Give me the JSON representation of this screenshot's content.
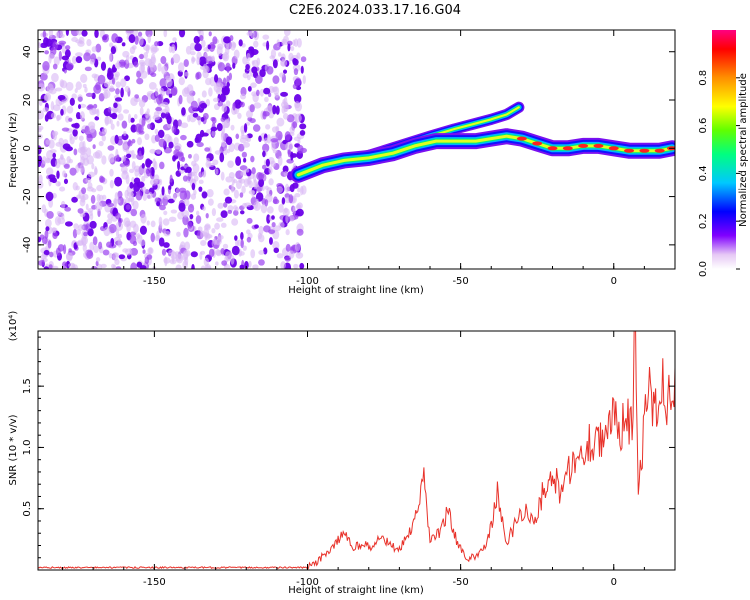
{
  "title": "C2E6.2024.033.17.16.G04",
  "chart_data": [
    {
      "type": "heatmap",
      "xlabel": "Height of straight line (km)",
      "ylabel": "Frequency (Hz)",
      "xlim": [
        -188,
        20
      ],
      "ylim": [
        -50,
        49
      ],
      "x_ticks": [
        -150,
        -100,
        -50,
        0
      ],
      "y_ticks": [
        -40,
        -20,
        0,
        20,
        40
      ],
      "colorbar": {
        "label": "Normalized spectral amplitude",
        "range": [
          0,
          1
        ],
        "ticks": [
          "0.0",
          "0.2",
          "0.4",
          "0.6",
          "0.8"
        ]
      },
      "noise_region_x": [
        -188,
        -101
      ],
      "ridge": {
        "x": [
          -103,
          -95,
          -88,
          -80,
          -72,
          -65,
          -58,
          -50,
          -45,
          -40,
          -35,
          -30,
          -25,
          -20,
          -15,
          -10,
          -5,
          0,
          5,
          10,
          15,
          19
        ],
        "y": [
          -11,
          -7,
          -5,
          -4,
          -2,
          1,
          3,
          3,
          3,
          4,
          5,
          4,
          2,
          0,
          0,
          1,
          1,
          0,
          -1,
          -1,
          -1,
          0
        ]
      },
      "upper_ridge": {
        "x": [
          -92,
          -80,
          -70,
          -60,
          -52,
          -46,
          -40,
          -35,
          -31
        ],
        "y": [
          -6,
          -3,
          1,
          5,
          8,
          10,
          12,
          14,
          17
        ]
      }
    },
    {
      "type": "line",
      "xlabel": "Height of straight line (km)",
      "ylabel": "SNR (10 * v/v)",
      "yscale_label": "(x10⁴)",
      "xlim": [
        -188,
        20
      ],
      "ylim": [
        0,
        1.95
      ],
      "x_ticks": [
        -150,
        -100,
        -50,
        0
      ],
      "y_ticks": [
        0.5,
        1.0,
        1.5
      ],
      "series": [
        {
          "color": "#e8322a",
          "x": [
            -188,
            -180,
            -170,
            -160,
            -150,
            -140,
            -130,
            -120,
            -110,
            -100,
            -97,
            -94,
            -91,
            -88,
            -85,
            -82,
            -79,
            -76,
            -73,
            -70,
            -67,
            -64,
            -62,
            -60,
            -57,
            -54,
            -51,
            -48,
            -45,
            -42,
            -40,
            -38,
            -35,
            -32,
            -29,
            -26,
            -23,
            -20,
            -17,
            -14,
            -11,
            -8,
            -5,
            -2,
            0,
            2,
            4,
            6,
            7,
            8,
            10,
            12,
            14,
            16,
            18,
            20
          ],
          "y": [
            0.02,
            0.02,
            0.02,
            0.02,
            0.02,
            0.02,
            0.02,
            0.02,
            0.02,
            0.02,
            0.06,
            0.14,
            0.2,
            0.32,
            0.18,
            0.22,
            0.17,
            0.28,
            0.2,
            0.16,
            0.3,
            0.45,
            0.72,
            0.25,
            0.3,
            0.48,
            0.22,
            0.08,
            0.12,
            0.2,
            0.35,
            0.62,
            0.22,
            0.38,
            0.52,
            0.35,
            0.65,
            0.8,
            0.6,
            0.88,
            0.9,
            1.05,
            1.12,
            1.05,
            1.25,
            1.18,
            1.25,
            1.2,
            1.95,
            0.55,
            1.2,
            1.45,
            1.28,
            1.55,
            1.38,
            1.65
          ]
        }
      ]
    }
  ]
}
